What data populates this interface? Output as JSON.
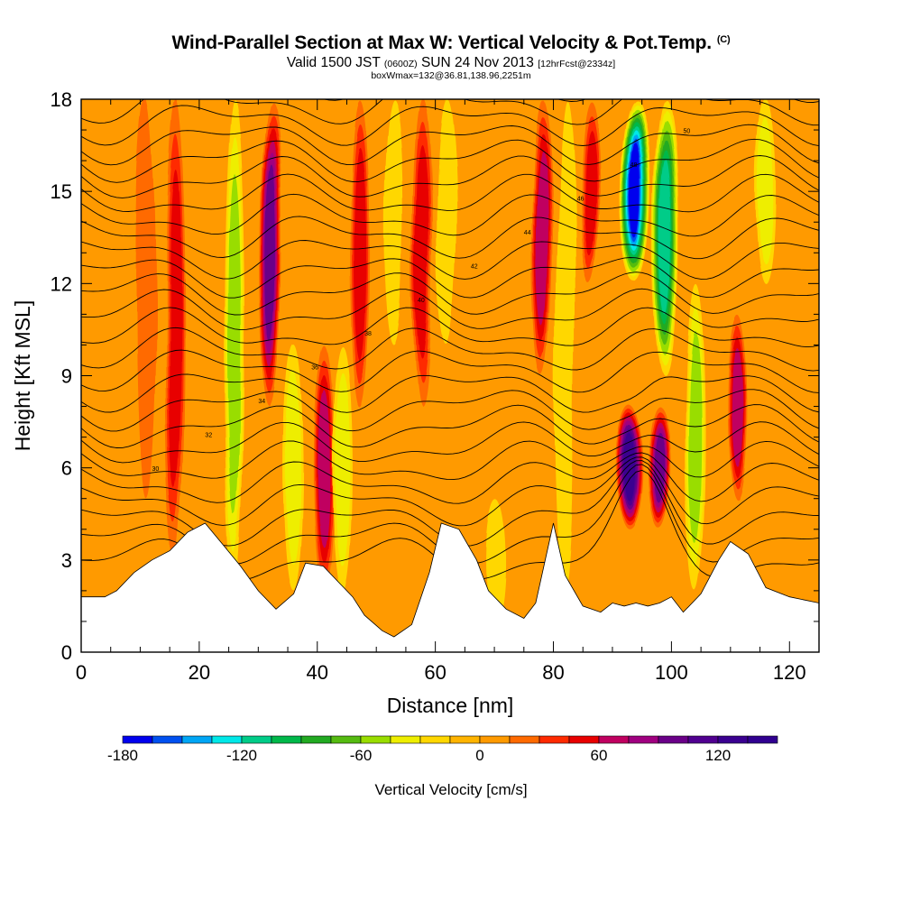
{
  "header": {
    "title": "Wind-Parallel Section at Max W: Vertical Velocity & Pot.Temp.",
    "copyright": "(C)",
    "valid_a": "Valid 1500 JST",
    "valid_b": "(0600Z)",
    "valid_c": "SUN 24 Nov 2013",
    "valid_d": "[12hrFcst@2334z]",
    "box_info": "boxWmax=132@36.81,138.96,2251m"
  },
  "chart_data": {
    "type": "heatmap",
    "title": "Wind-Parallel Section at Max W: Vertical Velocity & Pot.Temp.",
    "xlabel": "Distance [nm]",
    "ylabel": "Height [Kft MSL]",
    "xlim": [
      0,
      125
    ],
    "ylim": [
      0,
      18
    ],
    "xticks": [
      0,
      20,
      40,
      60,
      80,
      100,
      120
    ],
    "yticks": [
      0,
      3,
      6,
      9,
      12,
      15,
      18
    ],
    "x_tick_labels": [
      "0",
      "20",
      "40",
      "60",
      "80",
      "100",
      "120"
    ],
    "y_tick_labels": [
      "0",
      "3",
      "6",
      "9",
      "12",
      "15",
      "18"
    ],
    "colorbar": {
      "label": "Vertical Velocity [cm/s]",
      "min": -180,
      "max": 150,
      "step": 15,
      "tick_values": [
        -180,
        -120,
        -60,
        0,
        60,
        120
      ],
      "tick_labels": [
        "-180",
        "-120",
        "-60",
        "0",
        "60",
        "120"
      ],
      "colors": [
        "#0000ee",
        "#0050f0",
        "#00a6f5",
        "#00e8e8",
        "#00cc88",
        "#00b84a",
        "#22aa22",
        "#55bb11",
        "#99dd00",
        "#eeee00",
        "#ffd700",
        "#ffb400",
        "#ff9a00",
        "#ff6a00",
        "#ff2a00",
        "#e80000",
        "#c00060",
        "#a00080",
        "#6a0088",
        "#500090",
        "#3a0090",
        "#300090"
      ]
    },
    "vertical_velocity_features": [
      {
        "x_center": 11,
        "height_range": [
          5,
          18
        ],
        "value": 10,
        "note": "weak updraft column"
      },
      {
        "x_center": 16,
        "height_range": [
          3,
          18
        ],
        "value": 45
      },
      {
        "x_center": 26,
        "height_range": [
          2,
          18
        ],
        "value": -45
      },
      {
        "x_center": 32,
        "height_range": [
          8,
          18
        ],
        "value": 90
      },
      {
        "x_center": 36,
        "height_range": [
          2,
          10
        ],
        "value": -40
      },
      {
        "x_center": 41,
        "height_range": [
          2,
          10
        ],
        "value": 60
      },
      {
        "x_center": 44,
        "height_range": [
          2,
          10
        ],
        "value": -30
      },
      {
        "x_center": 47,
        "height_range": [
          8,
          18
        ],
        "value": 50
      },
      {
        "x_center": 53,
        "height_range": [
          10,
          18
        ],
        "value": -20
      },
      {
        "x_center": 58,
        "height_range": [
          8,
          18
        ],
        "value": 55
      },
      {
        "x_center": 62,
        "height_range": [
          10,
          18
        ],
        "value": -15
      },
      {
        "x_center": 70,
        "height_range": [
          1,
          5
        ],
        "value": -15
      },
      {
        "x_center": 78,
        "height_range": [
          9,
          18
        ],
        "value": 60
      },
      {
        "x_center": 82,
        "height_range": [
          2,
          18
        ],
        "value": -25
      },
      {
        "x_center": 86,
        "height_range": [
          12,
          18
        ],
        "value": 45
      },
      {
        "x_center": 94,
        "height_range": [
          12,
          18
        ],
        "value": -170
      },
      {
        "x_center": 99,
        "height_range": [
          9,
          18
        ],
        "value": -110
      },
      {
        "x_center": 93,
        "height_range": [
          4,
          8
        ],
        "value": 130,
        "note": "maximum updraft"
      },
      {
        "x_center": 98,
        "height_range": [
          4,
          8
        ],
        "value": 90
      },
      {
        "x_center": 104,
        "height_range": [
          2,
          12
        ],
        "value": -45
      },
      {
        "x_center": 111,
        "height_range": [
          5,
          11
        ],
        "value": 65
      },
      {
        "x_center": 116,
        "height_range": [
          12,
          18
        ],
        "value": -35
      }
    ],
    "terrain_profile": {
      "x": [
        0,
        4,
        6,
        9,
        12,
        15,
        18,
        21,
        24,
        27,
        30,
        33,
        36,
        38,
        41,
        44,
        46,
        48,
        51,
        53,
        56,
        59,
        61,
        64,
        67,
        69,
        72,
        75,
        77,
        80,
        82,
        85,
        88,
        90,
        92,
        94,
        96,
        98,
        100,
        102,
        105,
        108,
        110,
        113,
        116,
        120,
        125
      ],
      "height": [
        1.8,
        1.8,
        2.0,
        2.6,
        3.0,
        3.3,
        3.9,
        4.2,
        3.5,
        2.8,
        2.0,
        1.4,
        1.9,
        2.9,
        2.8,
        2.2,
        1.8,
        1.2,
        0.7,
        0.5,
        0.9,
        2.6,
        4.2,
        4.0,
        3.0,
        2.0,
        1.4,
        1.1,
        1.6,
        4.2,
        2.5,
        1.5,
        1.3,
        1.6,
        1.5,
        1.6,
        1.5,
        1.6,
        1.8,
        1.3,
        1.9,
        3.0,
        3.6,
        3.2,
        2.1,
        1.8,
        1.6
      ]
    },
    "contour_labels": [
      "30",
      "32",
      "34",
      "36",
      "38",
      "40",
      "42",
      "44",
      "46",
      "48",
      "50"
    ]
  }
}
